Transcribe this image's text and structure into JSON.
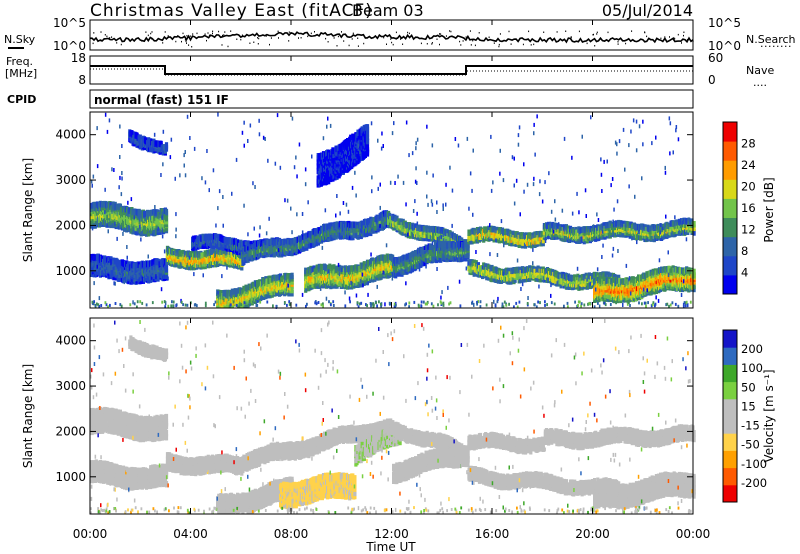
{
  "header": {
    "station": "Christmas Valley East (fitACF)",
    "beam": "Beam 03",
    "date": "05/Jul/2014"
  },
  "strip_labels": {
    "nsky": "N.Sky",
    "nsearch": "N.Search",
    "nsearch_dots": "........",
    "freq": "Freq.",
    "freq_unit": "[MHz]",
    "nave": "Nave",
    "nave_dots": "....",
    "cpid": "CPID",
    "cpid_value": "normal (fast) 151 IF",
    "noise_ticks_left": [
      "10^5",
      "10^0"
    ],
    "noise_ticks_right": [
      "10^5",
      "10^0"
    ],
    "freq_ticks": [
      "18",
      "8"
    ],
    "nave_ticks": [
      "60",
      "0"
    ]
  },
  "colors": {
    "power_scale": [
      "#0000ee",
      "#1e46c8",
      "#2d64a8",
      "#3e8c5a",
      "#72c44a",
      "#d8d818",
      "#ff9c00",
      "#ff5a00",
      "#ee0000"
    ],
    "velocity_scale": [
      "#ee0000",
      "#ff5a00",
      "#ffa000",
      "#ffd24a",
      "#bebebe",
      "#bebebe",
      "#7ad040",
      "#3ea82a",
      "#2e6ac0",
      "#1414c8"
    ],
    "ground_scatter": "#bebebe",
    "frame": "#000000"
  },
  "chart_data": [
    {
      "type": "heatmap",
      "name": "power",
      "ylabel": "Slant Range [km]",
      "yticks": [
        "1000",
        "2000",
        "3000",
        "4000"
      ],
      "ylim": [
        180,
        4500
      ],
      "xlim": [
        "00:00",
        "24:00"
      ],
      "colorbar": {
        "label": "Power [dB]",
        "ticks": [
          "28",
          "24",
          "20",
          "16",
          "12",
          "8",
          "4"
        ],
        "range": [
          0,
          32
        ]
      },
      "bands": [
        {
          "t": [
            0,
            3
          ],
          "r_start": 2200,
          "r_end": 2050,
          "width": 420,
          "dB": 18
        },
        {
          "t": [
            0,
            3
          ],
          "r_start": 1050,
          "r_end": 950,
          "width": 350,
          "dB": 9
        },
        {
          "t": [
            3,
            6
          ],
          "r_start": 1300,
          "r_end": 1200,
          "width": 260,
          "dB": 24
        },
        {
          "t": [
            4,
            7.5
          ],
          "r_start": 1600,
          "r_end": 1500,
          "width": 180,
          "dB": 10
        },
        {
          "t": [
            5,
            8
          ],
          "r_start": 300,
          "r_end": 700,
          "width": 350,
          "dB": 22
        },
        {
          "t": [
            6,
            11.8
          ],
          "r_start": 1300,
          "r_end": 2100,
          "width": 250,
          "dB": 13
        },
        {
          "t": [
            8.5,
            12
          ],
          "r_start": 750,
          "r_end": 1050,
          "width": 380,
          "dB": 22
        },
        {
          "t": [
            11.8,
            15
          ],
          "r_start": 2100,
          "r_end": 1500,
          "width": 200,
          "dB": 20
        },
        {
          "t": [
            12,
            15
          ],
          "r_start": 1100,
          "r_end": 1500,
          "width": 300,
          "dB": 14
        },
        {
          "t": [
            15,
            18
          ],
          "r_start": 1750,
          "r_end": 1700,
          "width": 190,
          "dB": 24
        },
        {
          "t": [
            18,
            24
          ],
          "r_start": 1800,
          "r_end": 1900,
          "width": 220,
          "dB": 19
        },
        {
          "t": [
            15,
            21
          ],
          "r_start": 1000,
          "r_end": 700,
          "width": 200,
          "dB": 22
        },
        {
          "t": [
            20,
            24
          ],
          "r_start": 500,
          "r_end": 850,
          "width": 400,
          "dB": 26
        },
        {
          "t": [
            1.5,
            3
          ],
          "r_start": 4000,
          "r_end": 3600,
          "width": 160,
          "dB": 8
        },
        {
          "t": [
            9,
            11
          ],
          "r_start": 3200,
          "r_end": 3800,
          "width": 600,
          "dB": 4
        }
      ]
    },
    {
      "type": "heatmap",
      "name": "velocity",
      "ylabel": "Slant Range [km]",
      "xlabel": "Time UT",
      "xticks": [
        "00:00",
        "04:00",
        "08:00",
        "12:00",
        "16:00",
        "20:00",
        "00:00"
      ],
      "yticks": [
        "1000",
        "2000",
        "3000",
        "4000"
      ],
      "ylim": [
        180,
        4500
      ],
      "xlim": [
        "00:00",
        "24:00"
      ],
      "colorbar": {
        "label": "Velocity [m s⁻¹]",
        "ticks": [
          "200",
          "100",
          "50",
          "15",
          "-15",
          "-50",
          "-100",
          "-200"
        ],
        "range": [
          -250,
          250
        ]
      },
      "bands": [
        {
          "t": [
            0,
            3
          ],
          "r_start": 2200,
          "r_end": 2050,
          "width": 420,
          "v": 0,
          "gs": true
        },
        {
          "t": [
            0,
            3
          ],
          "r_start": 1050,
          "r_end": 950,
          "width": 350,
          "v": 0,
          "gs": true
        },
        {
          "t": [
            3,
            6
          ],
          "r_start": 1300,
          "r_end": 1200,
          "width": 260,
          "v": 0,
          "gs": true
        },
        {
          "t": [
            5,
            8
          ],
          "r_start": 300,
          "r_end": 700,
          "width": 350,
          "v": 0,
          "gs": true
        },
        {
          "t": [
            6,
            11.8
          ],
          "r_start": 1300,
          "r_end": 2100,
          "width": 250,
          "v": 0,
          "gs": true
        },
        {
          "t": [
            7.5,
            10.5
          ],
          "r_start": 600,
          "r_end": 800,
          "width": 420,
          "v": -60,
          "gs": false
        },
        {
          "t": [
            10.5,
            12.3
          ],
          "r_start": 1500,
          "r_end": 1900,
          "width": 300,
          "v": 40,
          "gs": false
        },
        {
          "t": [
            11.8,
            15
          ],
          "r_start": 2100,
          "r_end": 1500,
          "width": 200,
          "v": 0,
          "gs": true
        },
        {
          "t": [
            12,
            15
          ],
          "r_start": 1100,
          "r_end": 1500,
          "width": 300,
          "v": 0,
          "gs": true
        },
        {
          "t": [
            15,
            18
          ],
          "r_start": 1750,
          "r_end": 1700,
          "width": 190,
          "v": 0,
          "gs": true
        },
        {
          "t": [
            18,
            24
          ],
          "r_start": 1800,
          "r_end": 1900,
          "width": 220,
          "v": 0,
          "gs": true
        },
        {
          "t": [
            15,
            21
          ],
          "r_start": 1000,
          "r_end": 700,
          "width": 200,
          "v": 0,
          "gs": true
        },
        {
          "t": [
            20,
            24
          ],
          "r_start": 500,
          "r_end": 850,
          "width": 400,
          "v": 0,
          "gs": true
        },
        {
          "t": [
            1.5,
            3
          ],
          "r_start": 4000,
          "r_end": 3600,
          "width": 160,
          "v": 0,
          "gs": true
        }
      ]
    }
  ]
}
